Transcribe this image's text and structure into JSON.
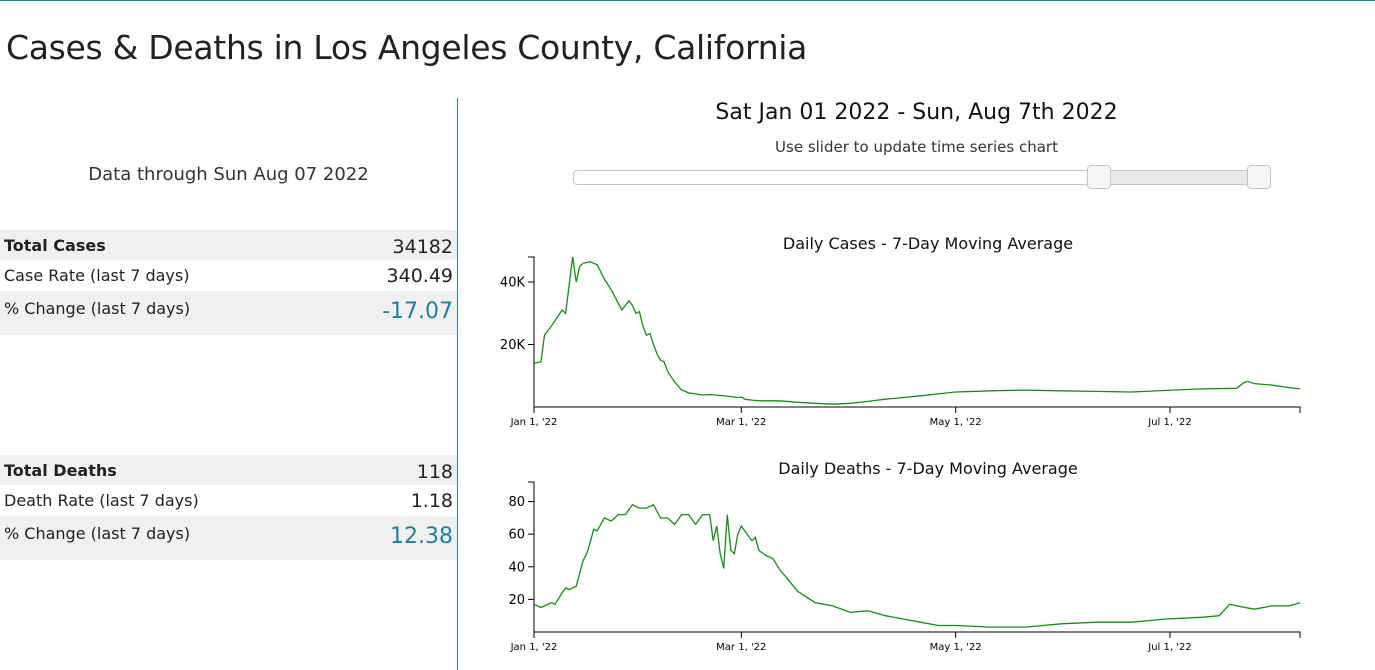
{
  "page": {
    "title": "Cases & Deaths in Los Angeles County, California",
    "data_through": "Data through Sun Aug 07 2022"
  },
  "cases_stats": [
    {
      "label": "Total Cases",
      "value": "34182"
    },
    {
      "label": "Case Rate (last 7 days)",
      "value": "340.49"
    },
    {
      "label": "% Change (last 7 days)",
      "value": "-17.07"
    }
  ],
  "deaths_stats": [
    {
      "label": "Total Deaths",
      "value": "118"
    },
    {
      "label": "Death Rate (last 7 days)",
      "value": "1.18"
    },
    {
      "label": "% Change (last 7 days)",
      "value": "12.38"
    }
  ],
  "slider": {
    "range_title": "Sat Jan 01 2022 - Sun, Aug 7th 2022",
    "hint": "Use slider to update time series chart",
    "low_fraction": 0.755,
    "high_fraction": 0.985
  },
  "colors": {
    "series": "#1a8a1a",
    "accent": "#1f7f96",
    "divider": "#3a7fb0"
  },
  "chart_data": [
    {
      "type": "line",
      "title": "Daily Cases - 7-Day Moving Average",
      "xlabel": "",
      "ylabel": "",
      "x_days_range": [
        0,
        218
      ],
      "ylim": [
        0,
        48000
      ],
      "y_ticks": [
        20000,
        40000
      ],
      "y_tick_labels": [
        "20K",
        "40K"
      ],
      "x_ticks": [
        0,
        59,
        120,
        181
      ],
      "x_tick_labels": [
        "Jan 1, '22",
        "Mar 1, '22",
        "May 1, '22",
        "Jul 1, '22"
      ],
      "series": [
        {
          "name": "Daily Cases",
          "x": [
            0,
            2,
            3,
            5,
            8,
            9,
            11,
            12,
            13,
            14,
            16,
            18,
            20,
            22,
            25,
            27,
            28,
            29,
            30,
            31,
            32,
            33,
            34,
            35,
            36,
            37,
            38,
            40,
            42,
            44,
            46,
            48,
            50,
            55,
            58,
            59,
            60,
            62,
            64,
            70,
            75,
            80,
            85,
            90,
            95,
            100,
            105,
            110,
            115,
            120,
            130,
            140,
            150,
            160,
            170,
            180,
            190,
            200,
            202,
            203,
            205,
            210,
            215,
            218
          ],
          "y": [
            14000,
            14500,
            23000,
            26000,
            31000,
            30000,
            48000,
            40000,
            45000,
            46000,
            46500,
            45500,
            41000,
            37500,
            31000,
            34000,
            32500,
            30000,
            30500,
            26000,
            23000,
            23500,
            20000,
            17000,
            15000,
            14500,
            11500,
            8000,
            5500,
            4500,
            4200,
            3800,
            4000,
            3500,
            3000,
            3200,
            2500,
            2200,
            2000,
            2000,
            1500,
            1200,
            900,
            1200,
            1800,
            2500,
            3000,
            3600,
            4200,
            4800,
            5200,
            5400,
            5200,
            5000,
            4800,
            5300,
            5800,
            6000,
            7800,
            8200,
            7500,
            7000,
            6200,
            5800
          ]
        }
      ]
    },
    {
      "type": "line",
      "title": "Daily Deaths - 7-Day Moving Average",
      "xlabel": "",
      "ylabel": "",
      "x_days_range": [
        0,
        218
      ],
      "ylim": [
        0,
        92
      ],
      "y_ticks": [
        20,
        40,
        60,
        80
      ],
      "y_tick_labels": [
        "20",
        "40",
        "60",
        "80"
      ],
      "x_ticks": [
        0,
        59,
        120,
        181
      ],
      "x_tick_labels": [
        "Jan 1, '22",
        "Mar 1, '22",
        "May 1, '22",
        "Jul 1, '22"
      ],
      "series": [
        {
          "name": "Daily Deaths",
          "x": [
            0,
            2,
            3,
            5,
            6,
            8,
            9,
            10,
            12,
            14,
            15,
            16,
            17,
            18,
            19,
            20,
            22,
            24,
            26,
            28,
            30,
            32,
            34,
            36,
            38,
            40,
            42,
            44,
            46,
            48,
            50,
            51,
            52,
            53,
            54,
            55,
            56,
            57,
            58,
            59,
            60,
            62,
            63,
            64,
            66,
            68,
            70,
            72,
            75,
            80,
            85,
            90,
            95,
            100,
            105,
            110,
            115,
            120,
            130,
            140,
            150,
            160,
            170,
            180,
            190,
            195,
            198,
            200,
            205,
            210,
            215,
            218
          ],
          "y": [
            17,
            15,
            16,
            18,
            17,
            24,
            27,
            26,
            28,
            44,
            48,
            55,
            63,
            62,
            66,
            70,
            68,
            72,
            72,
            78,
            76,
            76,
            78,
            70,
            70,
            66,
            72,
            72,
            66,
            72,
            72,
            56,
            65,
            48,
            39,
            72,
            50,
            48,
            60,
            65,
            62,
            56,
            58,
            50,
            47,
            45,
            38,
            33,
            25,
            18,
            16,
            12,
            13,
            10,
            8,
            6,
            4,
            4,
            3,
            3,
            5,
            6,
            6,
            8,
            9,
            10,
            17,
            16,
            14,
            16,
            16,
            18
          ]
        }
      ]
    }
  ]
}
